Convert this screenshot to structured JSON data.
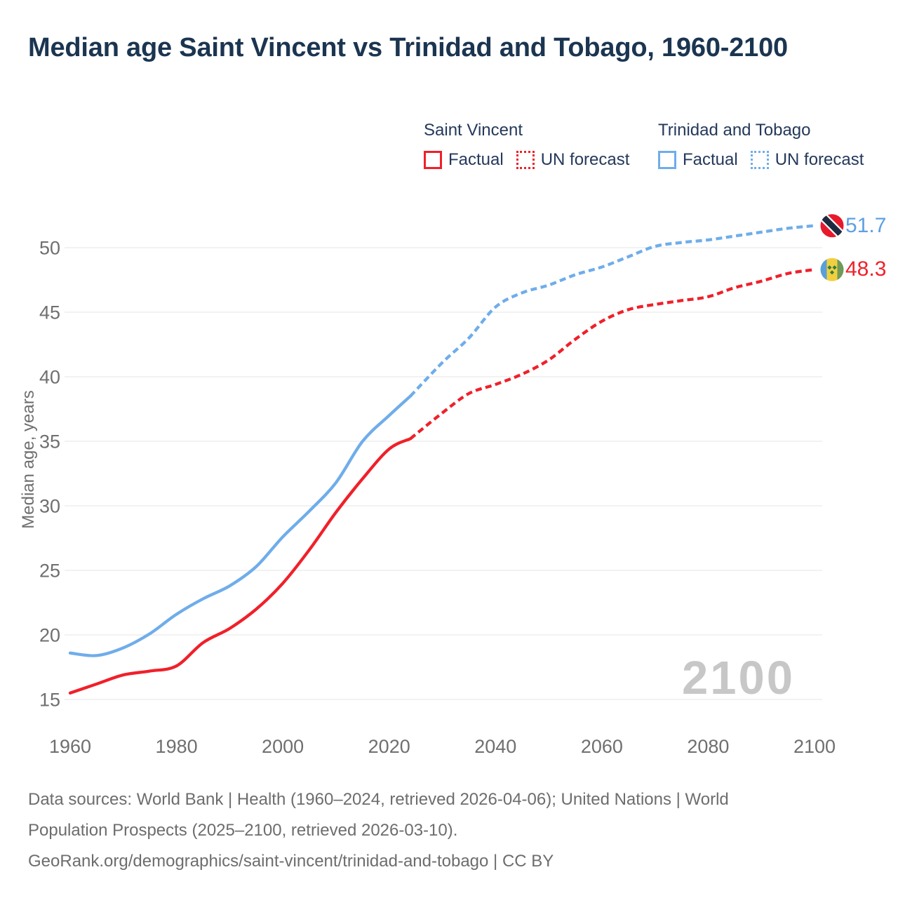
{
  "title": "Median age Saint Vincent vs Trinidad and Tobago, 1960-2100",
  "legend": {
    "groups": [
      {
        "title": "Saint Vincent",
        "color": "#f0202a",
        "factual_label": "Factual",
        "forecast_label": "UN forecast"
      },
      {
        "title": "Trinidad and Tobago",
        "color": "#6fadea",
        "factual_label": "Factual",
        "forecast_label": "UN forecast"
      }
    ]
  },
  "end_labels": [
    {
      "series": "Trinidad and Tobago",
      "value": "51.7",
      "color": "#5da0e4",
      "flag": "trinidad-and-tobago"
    },
    {
      "series": "Saint Vincent",
      "value": "48.3",
      "color": "#f0202a",
      "flag": "saint-vincent"
    }
  ],
  "watermark": "2100",
  "footer": {
    "lines": [
      "Data sources: World Bank | Health (1960–2024, retrieved 2026-04-06); United Nations | World",
      "Population Prospects (2025–2100, retrieved 2026-03-10).",
      "GeoRank.org/demographics/saint-vincent/trinidad-and-tobago | CC BY"
    ]
  },
  "chart_data": {
    "type": "line",
    "title": "Median age Saint Vincent vs Trinidad and Tobago, 1960-2100",
    "xlabel": "",
    "ylabel": "Median age, years",
    "x_ticks": [
      1960,
      1980,
      2000,
      2020,
      2040,
      2060,
      2080,
      2100
    ],
    "y_ticks": [
      15,
      20,
      25,
      30,
      35,
      40,
      45,
      50
    ],
    "xlim": [
      1955,
      2112
    ],
    "ylim": [
      13,
      52.5
    ],
    "grid": "horizontal",
    "legend_position": "top-right",
    "series": [
      {
        "name": "Saint Vincent",
        "color": "#f0202a",
        "end_value": 48.3,
        "factual": [
          [
            1960,
            15.5
          ],
          [
            1965,
            16.2
          ],
          [
            1970,
            16.9
          ],
          [
            1975,
            17.2
          ],
          [
            1980,
            17.6
          ],
          [
            1985,
            19.4
          ],
          [
            1990,
            20.5
          ],
          [
            1995,
            22.0
          ],
          [
            2000,
            24.0
          ],
          [
            2005,
            26.6
          ],
          [
            2010,
            29.5
          ],
          [
            2015,
            32.1
          ],
          [
            2020,
            34.4
          ],
          [
            2024,
            35.2
          ]
        ],
        "forecast": [
          [
            2024,
            35.2
          ],
          [
            2030,
            37.2
          ],
          [
            2035,
            38.7
          ],
          [
            2040,
            39.4
          ],
          [
            2045,
            40.2
          ],
          [
            2050,
            41.3
          ],
          [
            2055,
            42.9
          ],
          [
            2060,
            44.3
          ],
          [
            2065,
            45.2
          ],
          [
            2070,
            45.6
          ],
          [
            2075,
            45.9
          ],
          [
            2080,
            46.2
          ],
          [
            2085,
            46.9
          ],
          [
            2090,
            47.4
          ],
          [
            2095,
            48.0
          ],
          [
            2100,
            48.3
          ]
        ]
      },
      {
        "name": "Trinidad and Tobago",
        "color": "#6fadea",
        "end_value": 51.7,
        "factual": [
          [
            1960,
            18.6
          ],
          [
            1965,
            18.4
          ],
          [
            1970,
            19.0
          ],
          [
            1975,
            20.1
          ],
          [
            1980,
            21.6
          ],
          [
            1985,
            22.8
          ],
          [
            1990,
            23.8
          ],
          [
            1995,
            25.3
          ],
          [
            2000,
            27.6
          ],
          [
            2005,
            29.6
          ],
          [
            2010,
            31.8
          ],
          [
            2015,
            35.0
          ],
          [
            2020,
            37.0
          ],
          [
            2024,
            38.5
          ]
        ],
        "forecast": [
          [
            2024,
            38.5
          ],
          [
            2030,
            41.1
          ],
          [
            2035,
            43.0
          ],
          [
            2040,
            45.4
          ],
          [
            2045,
            46.5
          ],
          [
            2050,
            47.1
          ],
          [
            2055,
            47.9
          ],
          [
            2060,
            48.5
          ],
          [
            2065,
            49.3
          ],
          [
            2070,
            50.1
          ],
          [
            2075,
            50.4
          ],
          [
            2080,
            50.6
          ],
          [
            2085,
            50.9
          ],
          [
            2090,
            51.2
          ],
          [
            2095,
            51.5
          ],
          [
            2100,
            51.7
          ]
        ]
      }
    ]
  }
}
